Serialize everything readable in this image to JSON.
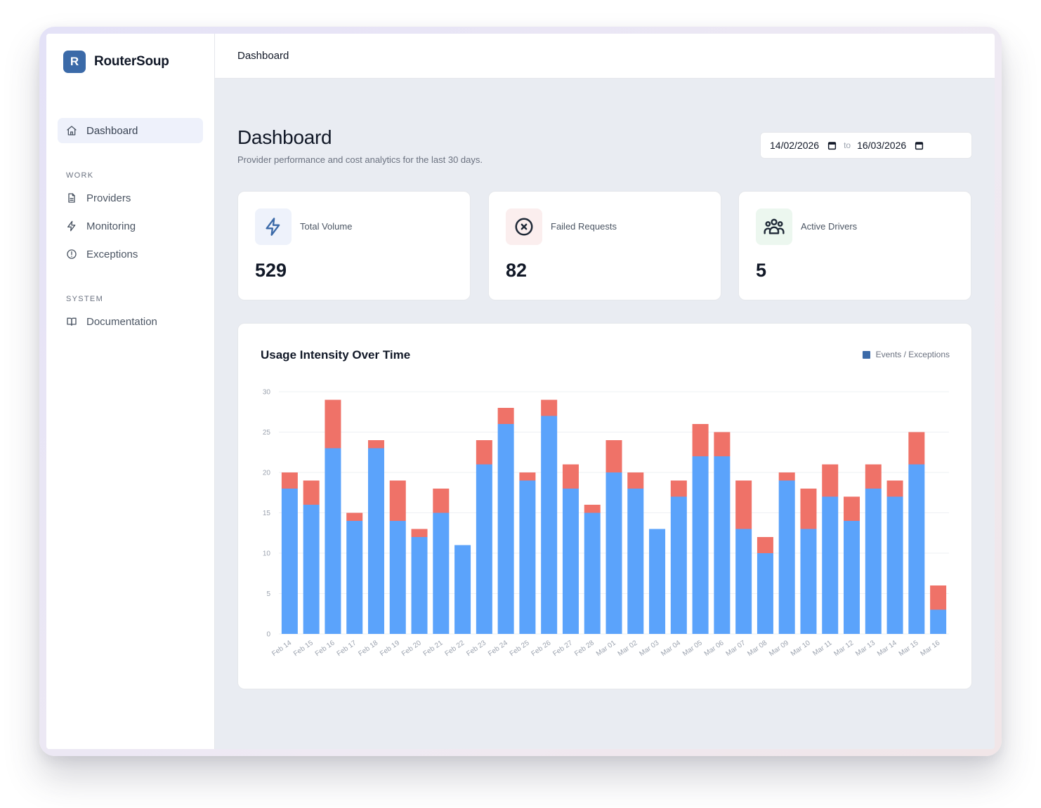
{
  "app": {
    "logo_letter": "R",
    "name": "RouterSoup"
  },
  "sidebar": {
    "items": [
      {
        "label": "Dashboard",
        "icon": "home-icon"
      }
    ],
    "sections": [
      {
        "title": "WORK",
        "items": [
          {
            "label": "Providers",
            "icon": "file-icon"
          },
          {
            "label": "Monitoring",
            "icon": "bolt-icon"
          },
          {
            "label": "Exceptions",
            "icon": "alert-circle-icon"
          }
        ]
      },
      {
        "title": "SYSTEM",
        "items": [
          {
            "label": "Documentation",
            "icon": "book-icon"
          }
        ]
      }
    ]
  },
  "topbar": {
    "breadcrumb": "Dashboard"
  },
  "header": {
    "title": "Dashboard",
    "subtitle": "Provider performance and cost analytics for the last 30 days."
  },
  "date_range": {
    "from": "14/02/2026",
    "separator": "to",
    "to": "16/03/2026"
  },
  "stats": [
    {
      "label": "Total Volume",
      "value": "529",
      "icon": "bolt-icon",
      "color": "#3b6aa8",
      "bg": "#eef2fb"
    },
    {
      "label": "Failed Requests",
      "value": "82",
      "icon": "x-circle-icon",
      "color": "#1f2937",
      "bg": "#fbeeee"
    },
    {
      "label": "Active Drivers",
      "value": "5",
      "icon": "users-icon",
      "color": "#1f2937",
      "bg": "#ecf7ef"
    }
  ],
  "chart_data": {
    "type": "bar",
    "stacked": true,
    "title": "Usage Intensity Over Time",
    "legend": "Events / Exceptions",
    "legend_position": "top-right",
    "categories": [
      "Feb 14",
      "Feb 15",
      "Feb 16",
      "Feb 17",
      "Feb 18",
      "Feb 19",
      "Feb 20",
      "Feb 21",
      "Feb 22",
      "Feb 23",
      "Feb 24",
      "Feb 25",
      "Feb 26",
      "Feb 27",
      "Feb 28",
      "Mar 01",
      "Mar 02",
      "Mar 03",
      "Mar 04",
      "Mar 05",
      "Mar 06",
      "Mar 07",
      "Mar 08",
      "Mar 09",
      "Mar 10",
      "Mar 11",
      "Mar 12",
      "Mar 13",
      "Mar 14",
      "Mar 15",
      "Mar 16"
    ],
    "series": [
      {
        "color": "#5ba3fb",
        "values": [
          18,
          16,
          23,
          14,
          23,
          14,
          12,
          15,
          11,
          21,
          26,
          19,
          27,
          18,
          15,
          20,
          18,
          13,
          17,
          22,
          22,
          13,
          10,
          19,
          13,
          17,
          14,
          18,
          17,
          21,
          3
        ]
      },
      {
        "color": "#ef7268",
        "values": [
          2,
          3,
          6,
          1,
          1,
          5,
          1,
          3,
          0,
          3,
          2,
          1,
          2,
          3,
          1,
          4,
          2,
          0,
          2,
          4,
          3,
          6,
          2,
          1,
          5,
          4,
          3,
          3,
          2,
          4,
          3
        ]
      }
    ],
    "ylim": [
      0,
      30
    ],
    "yticks": [
      0,
      5,
      10,
      15,
      20,
      25,
      30
    ],
    "grid": true
  }
}
